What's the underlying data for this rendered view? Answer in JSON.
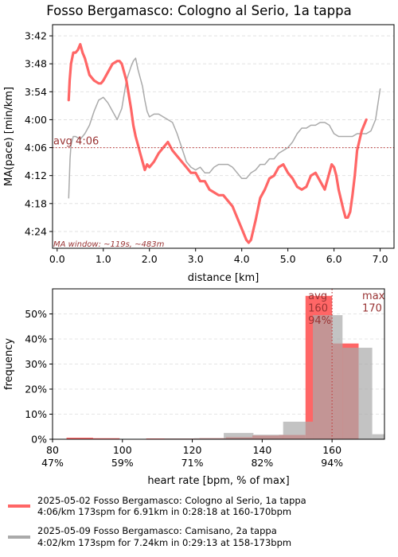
{
  "title": "Fosso Bergamasco: Cologno al Serio, 1a tappa",
  "colors": {
    "primary": "#ff6666",
    "secondary": "#aaaaaa",
    "avg_line": "#c04040",
    "annotation": "#993333"
  },
  "chart_data": [
    {
      "type": "line",
      "xlabel": "distance [km]",
      "ylabel": "MA(pace) [min/km]",
      "xlim": [
        -0.1,
        7.3
      ],
      "ylim": [
        3.66,
        4.46
      ],
      "y_inverted": true,
      "xticks": [
        "0.0",
        "1.0",
        "2.0",
        "3.0",
        "4.0",
        "5.0",
        "6.0",
        "7.0"
      ],
      "xtick_values": [
        0,
        1,
        2,
        3,
        4,
        5,
        6,
        7
      ],
      "yticks": [
        "3:42",
        "3:48",
        "3:54",
        "4:00",
        "4:06",
        "4:12",
        "4:18",
        "4:24"
      ],
      "ytick_values": [
        3.7,
        3.8,
        3.9,
        4.0,
        4.1,
        4.2,
        4.3,
        4.4
      ],
      "grid": true,
      "avg_value": 4.1,
      "avg_label": "avg 4:06",
      "annotation": "MA window: ~119s, ~483m",
      "series": [
        {
          "x": [
            0.25,
            0.27,
            0.3,
            0.35,
            0.4,
            0.45,
            0.5,
            0.55,
            0.6,
            0.7,
            0.8,
            0.9,
            0.95,
            1.0,
            1.1,
            1.2,
            1.3,
            1.35,
            1.4,
            1.5,
            1.55,
            1.6,
            1.65,
            1.7,
            1.75,
            1.8,
            1.85,
            1.9,
            1.95,
            2.0,
            2.1,
            2.2,
            2.3,
            2.4,
            2.5,
            2.6,
            2.7,
            2.8,
            2.9,
            3.0,
            3.1,
            3.2,
            3.3,
            3.4,
            3.5,
            3.6,
            3.7,
            3.8,
            3.9,
            4.0,
            4.1,
            4.15,
            4.2,
            4.3,
            4.4,
            4.5,
            4.6,
            4.7,
            4.8,
            4.9,
            5.0,
            5.1,
            5.2,
            5.3,
            5.4,
            5.5,
            5.6,
            5.7,
            5.8,
            5.9,
            5.95,
            6.0,
            6.05,
            6.1,
            6.2,
            6.25,
            6.3,
            6.35,
            6.4,
            6.45,
            6.5,
            6.6,
            6.7
          ],
          "y": [
            3.93,
            3.86,
            3.8,
            3.76,
            3.76,
            3.75,
            3.73,
            3.76,
            3.78,
            3.84,
            3.86,
            3.87,
            3.87,
            3.86,
            3.83,
            3.8,
            3.79,
            3.79,
            3.8,
            3.86,
            3.91,
            3.96,
            4.02,
            4.06,
            4.09,
            4.12,
            4.15,
            4.18,
            4.16,
            4.17,
            4.15,
            4.12,
            4.1,
            4.08,
            4.11,
            4.13,
            4.15,
            4.17,
            4.19,
            4.19,
            4.22,
            4.22,
            4.25,
            4.26,
            4.27,
            4.27,
            4.29,
            4.31,
            4.35,
            4.39,
            4.43,
            4.44,
            4.43,
            4.36,
            4.28,
            4.25,
            4.21,
            4.2,
            4.17,
            4.16,
            4.19,
            4.21,
            4.24,
            4.25,
            4.24,
            4.2,
            4.19,
            4.22,
            4.25,
            4.19,
            4.16,
            4.17,
            4.2,
            4.25,
            4.32,
            4.35,
            4.35,
            4.33,
            4.27,
            4.2,
            4.11,
            4.04,
            4.0
          ]
        },
        {
          "x": [
            0.25,
            0.28,
            0.3,
            0.35,
            0.4,
            0.5,
            0.6,
            0.7,
            0.8,
            0.9,
            1.0,
            1.1,
            1.2,
            1.3,
            1.4,
            1.5,
            1.6,
            1.65,
            1.7,
            1.75,
            1.8,
            1.85,
            1.9,
            1.95,
            2.0,
            2.1,
            2.2,
            2.3,
            2.4,
            2.5,
            2.6,
            2.7,
            2.8,
            2.9,
            3.0,
            3.1,
            3.2,
            3.3,
            3.4,
            3.5,
            3.6,
            3.7,
            3.8,
            3.9,
            4.0,
            4.1,
            4.2,
            4.3,
            4.4,
            4.5,
            4.6,
            4.7,
            4.8,
            4.9,
            5.0,
            5.1,
            5.2,
            5.3,
            5.4,
            5.5,
            5.6,
            5.7,
            5.8,
            5.9,
            6.0,
            6.1,
            6.2,
            6.3,
            6.4,
            6.5,
            6.6,
            6.7,
            6.8,
            6.9,
            7.0
          ],
          "y": [
            4.28,
            4.14,
            4.09,
            4.06,
            4.06,
            4.07,
            4.05,
            4.02,
            3.97,
            3.93,
            3.92,
            3.94,
            3.97,
            4.0,
            3.96,
            3.86,
            3.81,
            3.79,
            3.78,
            3.82,
            3.85,
            3.88,
            3.93,
            3.97,
            3.99,
            3.98,
            3.98,
            3.99,
            4.0,
            4.01,
            4.05,
            4.1,
            4.15,
            4.17,
            4.18,
            4.17,
            4.19,
            4.19,
            4.17,
            4.16,
            4.16,
            4.16,
            4.17,
            4.19,
            4.21,
            4.21,
            4.19,
            4.18,
            4.16,
            4.16,
            4.14,
            4.14,
            4.12,
            4.11,
            4.1,
            4.08,
            4.05,
            4.03,
            4.03,
            4.02,
            4.02,
            4.01,
            4.01,
            4.02,
            4.05,
            4.06,
            4.06,
            4.06,
            4.06,
            4.05,
            4.05,
            4.05,
            4.04,
            4.0,
            3.89
          ]
        }
      ]
    },
    {
      "type": "bar",
      "xlabel": "heart rate [bpm, % of max]",
      "ylabel": "frequency",
      "xlim": [
        80,
        175
      ],
      "ylim": [
        0,
        0.6
      ],
      "xticks": [
        "80\n47%",
        "100\n59%",
        "120\n71%",
        "140\n82%",
        "160\n94%"
      ],
      "xtick_values": [
        80,
        100,
        120,
        140,
        160
      ],
      "yticks": [
        "0%",
        "10%",
        "20%",
        "30%",
        "40%",
        "50%"
      ],
      "ytick_values": [
        0,
        0.1,
        0.2,
        0.3,
        0.4,
        0.5
      ],
      "grid": true,
      "avg_value": 160,
      "avg_label": "avg\n160\n94%",
      "max_label": "max\n170",
      "series": [
        {
          "bins": [
            [
              84,
              91.6
            ],
            [
              91.6,
              99.2
            ],
            [
              99.2,
              106.8
            ],
            [
              106.8,
              114.4
            ],
            [
              114.4,
              122
            ],
            [
              122,
              129.6
            ],
            [
              129.6,
              137.2
            ],
            [
              137.2,
              144.8
            ],
            [
              144.8,
              152.4
            ],
            [
              152.4,
              160
            ],
            [
              160,
              167.6
            ]
          ],
          "values": [
            0.006,
            0.004,
            0.001,
            0.003,
            0.003,
            0.004,
            0.008,
            0.015,
            0.017,
            0.572,
            0.382
          ]
        },
        {
          "bins": [
            [
              112,
              120.5
            ],
            [
              120.5,
              129
            ],
            [
              129,
              137.5
            ],
            [
              137.5,
              146
            ],
            [
              146,
              154.5
            ],
            [
              154.5,
              163
            ],
            [
              163,
              171.5
            ],
            [
              171.5,
              175
            ]
          ],
          "values": [
            0.003,
            0.004,
            0.025,
            0.018,
            0.07,
            0.495,
            0.365,
            0.02
          ]
        }
      ]
    }
  ],
  "legend": [
    {
      "line1": "2025-05-02 Fosso Bergamasco: Cologno al Serio, 1a tappa",
      "line2": "4:06/km 173spm for 6.91km in 0:28:18 at 160-170bpm"
    },
    {
      "line1": "2025-05-09 Fosso Bergamasco: Camisano, 2a tappa",
      "line2": "4:02/km 173spm for 7.24km in 0:29:13 at 158-173bpm"
    }
  ]
}
